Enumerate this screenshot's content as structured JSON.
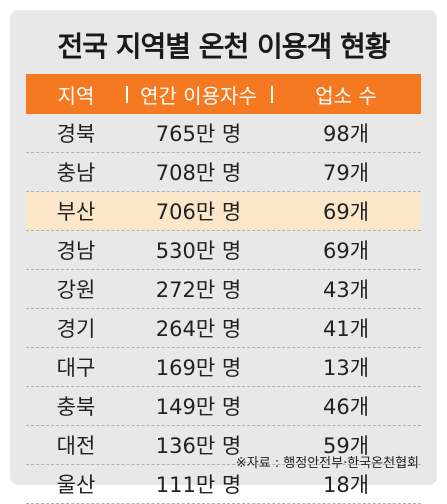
{
  "title": "전국 지역별 온천 이용객 현황",
  "table": {
    "headers": [
      "지역",
      "연간 이용자수",
      "업소 수"
    ],
    "highlight_color": "#fbe6c9",
    "header_color": "#f47920",
    "rows": [
      {
        "region": "경북",
        "visitors": "765만 명",
        "count": "98개",
        "highlight": false
      },
      {
        "region": "충남",
        "visitors": "708만 명",
        "count": "79개",
        "highlight": false
      },
      {
        "region": "부산",
        "visitors": "706만 명",
        "count": "69개",
        "highlight": true
      },
      {
        "region": "경남",
        "visitors": "530만 명",
        "count": "69개",
        "highlight": false
      },
      {
        "region": "강원",
        "visitors": "272만 명",
        "count": "43개",
        "highlight": false
      },
      {
        "region": "경기",
        "visitors": "264만 명",
        "count": "41개",
        "highlight": false
      },
      {
        "region": "대구",
        "visitors": "169만 명",
        "count": "13개",
        "highlight": false
      },
      {
        "region": "충북",
        "visitors": "149만 명",
        "count": "46개",
        "highlight": false
      },
      {
        "region": "대전",
        "visitors": "136만 명",
        "count": "59개",
        "highlight": false
      },
      {
        "region": "울산",
        "visitors": "111만 명",
        "count": "18개",
        "highlight": false
      }
    ]
  },
  "source": "※자료 : 행정안전부·한국온천협회"
}
